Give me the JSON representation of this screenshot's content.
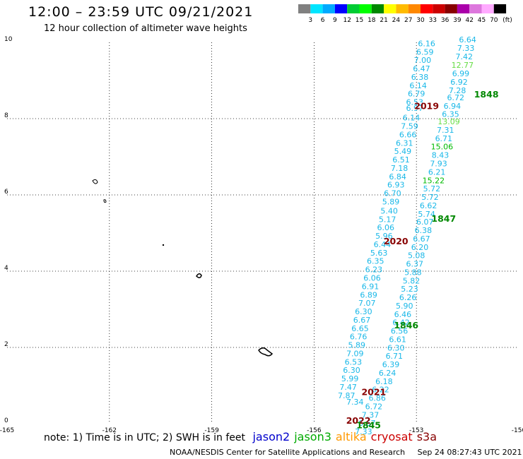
{
  "header": {
    "title": "12:00 – 23:59 UTC 09/21/2021",
    "subtitle": "12 hour collection of altimeter wave heights"
  },
  "colorbar": {
    "unit": "(ft)",
    "labels": [
      "3",
      "6",
      "9",
      "12",
      "15",
      "18",
      "21",
      "24",
      "27",
      "30",
      "33",
      "36",
      "39",
      "42",
      "45",
      "70"
    ],
    "colors": [
      "#808080",
      "#00e5ff",
      "#00aaff",
      "#0000ff",
      "#00cc33",
      "#00ff00",
      "#008800",
      "#ffff00",
      "#ffbb00",
      "#ff8800",
      "#ff0000",
      "#cc0000",
      "#880000",
      "#aa00aa",
      "#dd77dd",
      "#ffaaff",
      "#000000"
    ]
  },
  "axes": {
    "lon_ticks": [
      "-165",
      "-162",
      "-159",
      "-156",
      "-153",
      "-150"
    ],
    "lat_ticks": [
      "0",
      "2",
      "4",
      "6",
      "8",
      "10"
    ]
  },
  "points_a": [
    {
      "v": "6.16",
      "lon": -152.7,
      "lat": 9.9
    },
    {
      "v": "6.59",
      "lon": -152.75,
      "lat": 9.68
    },
    {
      "v": "7.00",
      "lon": -152.82,
      "lat": 9.46
    },
    {
      "v": "6.47",
      "lon": -152.85,
      "lat": 9.24
    },
    {
      "v": "6.38",
      "lon": -152.9,
      "lat": 9.02
    },
    {
      "v": "6.14",
      "lon": -152.95,
      "lat": 8.8
    },
    {
      "v": "6.79",
      "lon": -153.0,
      "lat": 8.58
    },
    {
      "v": "6.53",
      "lon": -153.05,
      "lat": 8.36
    },
    {
      "v": "6.97",
      "lon": -153.05,
      "lat": 8.2
    },
    {
      "v": "6.14",
      "lon": -153.15,
      "lat": 7.95
    },
    {
      "v": "7.59",
      "lon": -153.2,
      "lat": 7.73
    },
    {
      "v": "6.66",
      "lon": -153.25,
      "lat": 7.51
    },
    {
      "v": "6.31",
      "lon": -153.35,
      "lat": 7.29
    },
    {
      "v": "5.49",
      "lon": -153.4,
      "lat": 7.07
    },
    {
      "v": "6.51",
      "lon": -153.45,
      "lat": 6.85
    },
    {
      "v": "7.18",
      "lon": -153.5,
      "lat": 6.63
    },
    {
      "v": "6.84",
      "lon": -153.55,
      "lat": 6.41
    },
    {
      "v": "6.93",
      "lon": -153.6,
      "lat": 6.19
    },
    {
      "v": "6.70",
      "lon": -153.7,
      "lat": 5.97
    },
    {
      "v": "5.89",
      "lon": -153.75,
      "lat": 5.75
    },
    {
      "v": "5.40",
      "lon": -153.8,
      "lat": 5.51
    },
    {
      "v": "5.17",
      "lon": -153.85,
      "lat": 5.29
    },
    {
      "v": "6.06",
      "lon": -153.9,
      "lat": 5.07
    },
    {
      "v": "5.96",
      "lon": -153.95,
      "lat": 4.85
    },
    {
      "v": "6.44",
      "lon": -154.0,
      "lat": 4.63
    },
    {
      "v": "5.63",
      "lon": -154.1,
      "lat": 4.41
    },
    {
      "v": "6.35",
      "lon": -154.2,
      "lat": 4.19
    },
    {
      "v": "6.23",
      "lon": -154.25,
      "lat": 3.97
    },
    {
      "v": "6.06",
      "lon": -154.3,
      "lat": 3.75
    },
    {
      "v": "6.91",
      "lon": -154.35,
      "lat": 3.53
    },
    {
      "v": "6.89",
      "lon": -154.4,
      "lat": 3.31
    },
    {
      "v": "7.07",
      "lon": -154.45,
      "lat": 3.09
    },
    {
      "v": "6.30",
      "lon": -154.55,
      "lat": 2.87
    },
    {
      "v": "6.67",
      "lon": -154.6,
      "lat": 2.65
    },
    {
      "v": "6.65",
      "lon": -154.65,
      "lat": 2.43
    },
    {
      "v": "6.76",
      "lon": -154.7,
      "lat": 2.21
    },
    {
      "v": "5.89",
      "lon": -154.75,
      "lat": 1.99
    },
    {
      "v": "7.09",
      "lon": -154.8,
      "lat": 1.77
    },
    {
      "v": "6.53",
      "lon": -154.85,
      "lat": 1.55
    },
    {
      "v": "6.30",
      "lon": -154.9,
      "lat": 1.33
    },
    {
      "v": "5.99",
      "lon": -154.95,
      "lat": 1.11
    },
    {
      "v": "7.47",
      "lon": -155.0,
      "lat": 0.89
    },
    {
      "v": "7.87",
      "lon": -155.05,
      "lat": 0.67
    },
    {
      "v": "7.34",
      "lon": -154.8,
      "lat": 0.5
    }
  ],
  "points_b": [
    {
      "v": "6.64",
      "lon": -151.5,
      "lat": 10.0
    },
    {
      "v": "7.33",
      "lon": -151.55,
      "lat": 9.78
    },
    {
      "v": "7.42",
      "lon": -151.6,
      "lat": 9.56
    },
    {
      "v": "12.77",
      "lon": -151.65,
      "lat": 9.33,
      "c": "#66dd44"
    },
    {
      "v": "6.99",
      "lon": -151.7,
      "lat": 9.11
    },
    {
      "v": "6.92",
      "lon": -151.75,
      "lat": 8.89
    },
    {
      "v": "7.28",
      "lon": -151.8,
      "lat": 8.67
    },
    {
      "v": "6.72",
      "lon": -151.85,
      "lat": 8.48
    },
    {
      "v": "6.94",
      "lon": -151.95,
      "lat": 8.26
    },
    {
      "v": "6.35",
      "lon": -152.0,
      "lat": 8.05
    },
    {
      "v": "13.09",
      "lon": -152.05,
      "lat": 7.85,
      "c": "#66dd44"
    },
    {
      "v": "7.31",
      "lon": -152.15,
      "lat": 7.63
    },
    {
      "v": "6.71",
      "lon": -152.2,
      "lat": 7.41
    },
    {
      "v": "15.06",
      "lon": -152.25,
      "lat": 7.19,
      "c": "#00bb00"
    },
    {
      "v": "8.43",
      "lon": -152.3,
      "lat": 6.97
    },
    {
      "v": "7.93",
      "lon": -152.35,
      "lat": 6.75
    },
    {
      "v": "6.21",
      "lon": -152.4,
      "lat": 6.53
    },
    {
      "v": "15.22",
      "lon": -152.5,
      "lat": 6.31,
      "c": "#00bb00"
    },
    {
      "v": "5.72",
      "lon": -152.55,
      "lat": 6.09
    },
    {
      "v": "5.72",
      "lon": -152.6,
      "lat": 5.87
    },
    {
      "v": "6.62",
      "lon": -152.65,
      "lat": 5.65
    },
    {
      "v": "5.74",
      "lon": -152.7,
      "lat": 5.43
    },
    {
      "v": "6.07",
      "lon": -152.75,
      "lat": 5.22
    },
    {
      "v": "6.38",
      "lon": -152.8,
      "lat": 5.0
    },
    {
      "v": "6.67",
      "lon": -152.85,
      "lat": 4.78
    },
    {
      "v": "6.20",
      "lon": -152.9,
      "lat": 4.56
    },
    {
      "v": "5.08",
      "lon": -153.0,
      "lat": 4.34
    },
    {
      "v": "6.37",
      "lon": -153.05,
      "lat": 4.12
    },
    {
      "v": "5.88",
      "lon": -153.1,
      "lat": 3.9
    },
    {
      "v": "5.82",
      "lon": -153.15,
      "lat": 3.68
    },
    {
      "v": "5.23",
      "lon": -153.2,
      "lat": 3.46
    },
    {
      "v": "6.26",
      "lon": -153.25,
      "lat": 3.24
    },
    {
      "v": "5.90",
      "lon": -153.35,
      "lat": 3.02
    },
    {
      "v": "6.46",
      "lon": -153.4,
      "lat": 2.8
    },
    {
      "v": "6.42",
      "lon": -153.45,
      "lat": 2.58
    },
    {
      "v": "6.56",
      "lon": -153.5,
      "lat": 2.36
    },
    {
      "v": "6.61",
      "lon": -153.55,
      "lat": 2.14
    },
    {
      "v": "6.30",
      "lon": -153.6,
      "lat": 1.92
    },
    {
      "v": "6.71",
      "lon": -153.65,
      "lat": 1.7
    },
    {
      "v": "6.39",
      "lon": -153.75,
      "lat": 1.48
    },
    {
      "v": "6.24",
      "lon": -153.85,
      "lat": 1.26
    },
    {
      "v": "6.18",
      "lon": -153.95,
      "lat": 1.04
    },
    {
      "v": "6.22",
      "lon": -154.05,
      "lat": 0.82
    },
    {
      "v": "6.86",
      "lon": -154.15,
      "lat": 0.6
    },
    {
      "v": "6.72",
      "lon": -154.25,
      "lat": 0.38
    },
    {
      "v": "7.37",
      "lon": -154.35,
      "lat": 0.16
    },
    {
      "v": "6.67",
      "lon": -154.45,
      "lat": -0.06
    },
    {
      "v": "7.33",
      "lon": -154.55,
      "lat": -0.28
    }
  ],
  "time_labels": [
    {
      "t": "1848",
      "lon": -150.95,
      "lat": 8.56,
      "c": "#008800"
    },
    {
      "t": "2019",
      "lon": -152.7,
      "lat": 8.25,
      "c": "#880000"
    },
    {
      "t": "1847",
      "lon": -152.2,
      "lat": 5.3,
      "c": "#008800"
    },
    {
      "t": "2020",
      "lon": -153.6,
      "lat": 4.7,
      "c": "#880000"
    },
    {
      "t": "1846",
      "lon": -153.3,
      "lat": 2.5,
      "c": "#008800"
    },
    {
      "t": "2021",
      "lon": -154.25,
      "lat": 0.75,
      "c": "#880000"
    },
    {
      "t": "2022",
      "lon": -154.7,
      "lat": 0.0,
      "c": "#880000"
    },
    {
      "t": "1845",
      "lon": -154.4,
      "lat": -0.12,
      "c": "#008800"
    }
  ],
  "footer": {
    "note": "note:  1) Time is in UTC;  2) SWH is in feet",
    "satellites": [
      {
        "name": "jason2",
        "color": "#0000cc"
      },
      {
        "name": "jason3",
        "color": "#00aa00"
      },
      {
        "name": "altika",
        "color": "#ff9900"
      },
      {
        "name": "cryosat",
        "color": "#cc0000"
      },
      {
        "name": "s3a",
        "color": "#880000"
      }
    ],
    "credit_left": "NOAA/NESDIS Center for Satellite Applications and Research",
    "credit_right": "Sep 24 08:27:43 UTC 2021"
  }
}
